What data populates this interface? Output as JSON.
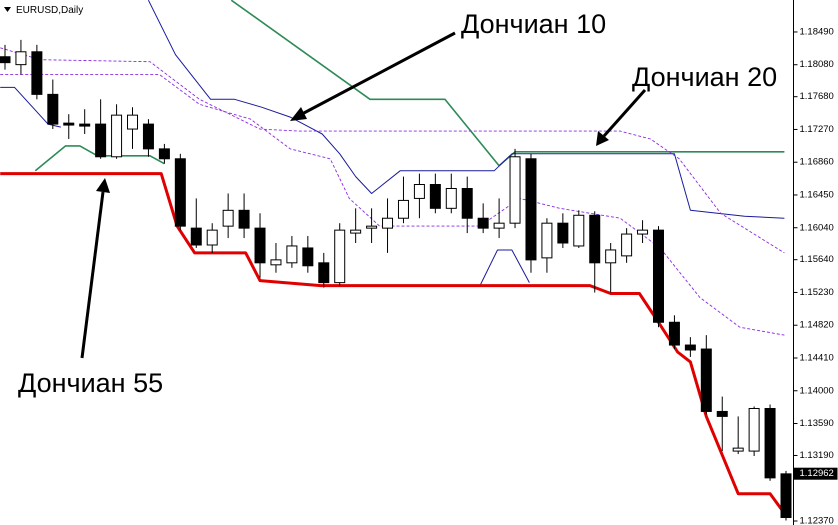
{
  "chart_data": {
    "type": "candlestick",
    "title": "EURUSD,Daily",
    "up_color": "#ffffff",
    "down_color": "#000000",
    "open": [
      1.1818,
      1.18081,
      1.18242,
      1.17709,
      1.17349,
      1.17337,
      1.17337,
      1.16928,
      1.17275,
      1.17337,
      1.17027,
      1.16903,
      1.16035,
      1.15824,
      1.1606,
      1.16258,
      1.16035,
      1.15576,
      1.15601,
      1.15787,
      1.15601,
      1.15353,
      1.15973,
      1.16035,
      1.16035,
      1.16159,
      1.16407,
      1.16581,
      1.16283,
      1.16531,
      1.16159,
      1.16035,
      1.16097,
      1.16903,
      1.15663,
      1.16097,
      1.15812,
      1.16196,
      1.15601,
      1.15688,
      1.15961,
      1.1601,
      1.14857,
      1.14572,
      1.14522,
      1.13741,
      1.13245,
      1.13245,
      1.13778,
      1.1296
    ],
    "high": [
      1.18329,
      1.18391,
      1.18329,
      1.17895,
      1.17461,
      1.17523,
      1.17647,
      1.17585,
      1.17548,
      1.17399,
      1.17089,
      1.16965,
      1.16407,
      1.16097,
      1.16469,
      1.16469,
      1.16221,
      1.15849,
      1.15936,
      1.15936,
      1.15725,
      1.16097,
      1.16283,
      1.16283,
      1.16407,
      1.1668,
      1.16717,
      1.16717,
      1.16717,
      1.1668,
      1.16345,
      1.16407,
      1.17027,
      1.16965,
      1.16159,
      1.16221,
      1.16258,
      1.16246,
      1.15849,
      1.16035,
      1.16134,
      1.1606,
      1.14944,
      1.14671,
      1.14696,
      1.13927,
      1.13679,
      1.13803,
      1.13828,
      1.12997
    ],
    "low": [
      1.18019,
      1.17957,
      1.17647,
      1.17275,
      1.17151,
      1.17213,
      1.16903,
      1.16903,
      1.17027,
      1.16928,
      1.16841,
      1.1601,
      1.15787,
      1.15725,
      1.15911,
      1.15911,
      1.15415,
      1.15477,
      1.15539,
      1.15477,
      1.15291,
      1.15316,
      1.15849,
      1.15849,
      1.15725,
      1.16097,
      1.16159,
      1.16221,
      1.16221,
      1.15973,
      1.15973,
      1.15911,
      1.16035,
      1.15477,
      1.15477,
      1.15787,
      1.15787,
      1.15229,
      1.15229,
      1.15601,
      1.15849,
      1.14795,
      1.14522,
      1.14423,
      1.13704,
      1.13245,
      1.13208,
      1.13183,
      1.12873,
      1.12377
    ],
    "close": [
      1.18106,
      1.18242,
      1.17709,
      1.17337,
      1.17325,
      1.17312,
      1.16928,
      1.17449,
      1.17449,
      1.17027,
      1.16903,
      1.1606,
      1.15824,
      1.1601,
      1.16258,
      1.16035,
      1.15601,
      1.15638,
      1.15812,
      1.15564,
      1.15353,
      1.1601,
      1.1601,
      1.1606,
      1.16159,
      1.16382,
      1.16581,
      1.16283,
      1.16531,
      1.16159,
      1.16035,
      1.16097,
      1.16928,
      1.15638,
      1.16097,
      1.15849,
      1.16196,
      1.15601,
      1.15762,
      1.15961,
      1.1601,
      1.14857,
      1.14572,
      1.1451,
      1.13741,
      1.13679,
      1.13282,
      1.13778,
      1.1291,
      1.12414
    ],
    "series": [
      {
        "color": "#2e8b57",
        "style": "medium",
        "x": [
          1.9,
          3.8,
          4.7,
          5.8,
          9.1,
          10,
          12,
          14.2,
          22.9,
          27.6,
          31,
          32,
          48.9
        ],
        "values": [
          1.16754,
          1.17064,
          1.17064,
          1.1694,
          1.1694,
          1.16841,
          null,
          1.18887,
          1.17647,
          1.17647,
          1.16816,
          1.1699,
          1.1699
        ]
      },
      {
        "color": "#1a1a9c",
        "style": "thin",
        "x": [
          -0.3,
          0.6,
          2.7,
          3.5,
          6,
          9,
          10.7,
          12.9,
          14.4,
          16.1,
          17.9,
          19.9,
          21,
          22,
          23,
          24.8,
          30.7,
          31.8,
          42,
          43,
          46.4,
          48.9,
          29,
          29.8,
          30.9,
          31.8,
          32.9
        ],
        "values": [
          1.17796,
          1.17796,
          1.17337,
          1.173,
          null,
          1.18887,
          1.18205,
          1.17647,
          1.17647,
          1.17548,
          1.17424,
          1.17213,
          1.16965,
          1.1668,
          1.16469,
          1.16754,
          1.16754,
          1.16965,
          1.16965,
          1.16258,
          1.16184,
          1.16159,
          null,
          1.15316,
          1.15762,
          1.15762,
          1.15353
        ]
      },
      {
        "color": "#8a2be2",
        "style": "dashed",
        "x": [
          -0.3,
          2.2,
          9.1,
          12.2,
          16,
          18.5,
          38.6,
          40.5,
          42.3,
          44.9,
          48.9
        ],
        "values": [
          1.18292,
          1.18143,
          1.18118,
          1.17647,
          1.17275,
          1.1725,
          1.1725,
          1.17151,
          1.16903,
          1.16221,
          1.15725
        ]
      },
      {
        "color": "#8a2be2",
        "style": "dashed",
        "x": [
          -0.3,
          9.7,
          12.2,
          15.4,
          17.9,
          20.4,
          21.6,
          23.5,
          29.8,
          32.3,
          34.8,
          38.6,
          41.1,
          43.6,
          46.1,
          48.9
        ],
        "values": [
          1.17957,
          1.17957,
          1.17585,
          1.17399,
          1.17027,
          1.16903,
          1.16407,
          1.1606,
          1.1606,
          1.16407,
          1.16283,
          1.16159,
          1.15787,
          1.15167,
          1.14795,
          1.14696
        ]
      },
      {
        "color": "#e00000",
        "style": "thick",
        "x": [
          -0.3,
          9.8,
          10.8,
          11.9,
          15.1,
          16,
          19.8,
          36.7,
          38,
          39.8,
          41,
          42.2,
          43,
          44,
          46,
          48,
          49
        ],
        "values": [
          1.16717,
          1.16717,
          1.1606,
          1.15725,
          1.15725,
          1.15378,
          1.15316,
          1.15316,
          1.15217,
          1.15217,
          1.14857,
          1.14485,
          1.14361,
          1.13679,
          1.12712,
          1.12712,
          1.12439
        ]
      }
    ],
    "ylim": [
      1.1232,
      1.1889
    ],
    "yticks": [
      {
        "value": 1.1849,
        "label": "1.18490"
      },
      {
        "value": 1.1808,
        "label": "1.18080"
      },
      {
        "value": 1.1768,
        "label": "1.17680"
      },
      {
        "value": 1.1727,
        "label": "1.17270"
      },
      {
        "value": 1.1686,
        "label": "1.16860"
      },
      {
        "value": 1.1645,
        "label": "1.16450"
      },
      {
        "value": 1.1604,
        "label": "1.16040"
      },
      {
        "value": 1.1564,
        "label": "1.15640"
      },
      {
        "value": 1.1523,
        "label": "1.15230"
      },
      {
        "value": 1.1482,
        "label": "1.14820"
      },
      {
        "value": 1.1441,
        "label": "1.14410"
      },
      {
        "value": 1.14,
        "label": "1.14000"
      },
      {
        "value": 1.1359,
        "label": "1.13590"
      },
      {
        "value": 1.1319,
        "label": "1.13190"
      },
      {
        "value": 1.1237,
        "label": "1.12370"
      }
    ],
    "current_price": 1.12962,
    "annotations": [
      "Дончиан 10",
      "Дончиан 20",
      "Дончиан 55"
    ]
  }
}
